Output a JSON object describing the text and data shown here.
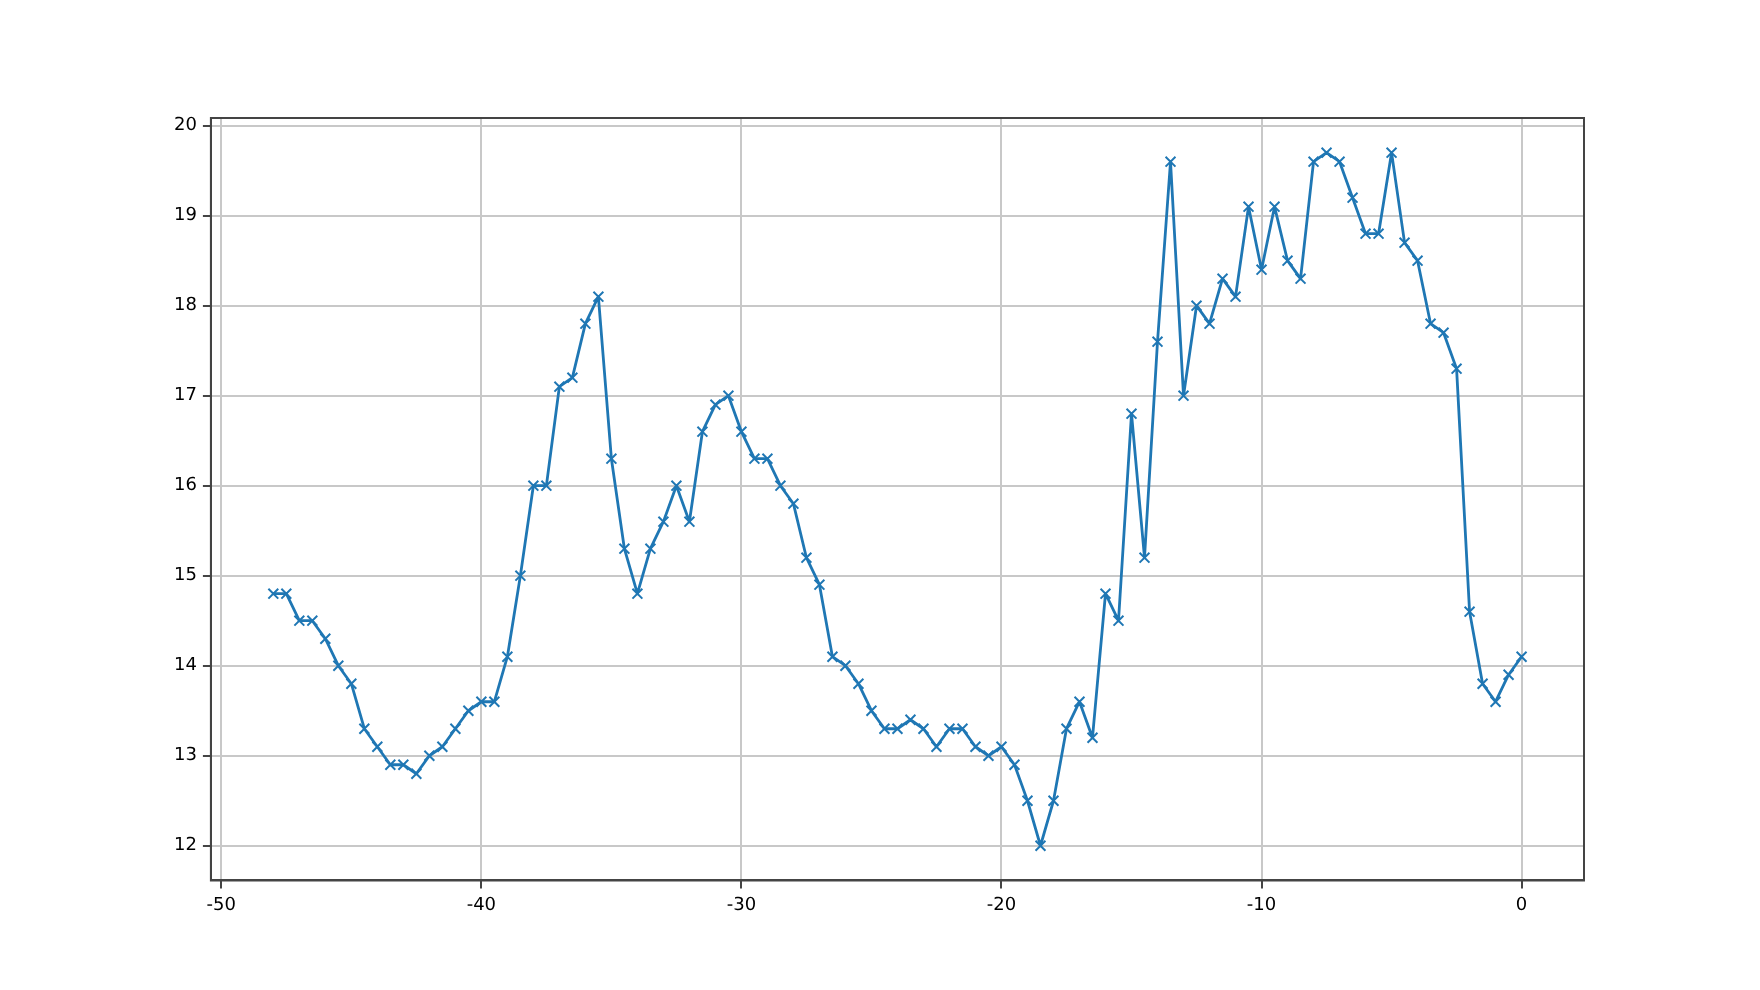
{
  "chart_data": {
    "type": "line",
    "marker": "cross",
    "line_style": "solid",
    "grid": true,
    "legend": false,
    "x": [
      -48,
      -47.5,
      -47,
      -46.5,
      -46,
      -45.5,
      -45,
      -44.5,
      -44,
      -43.5,
      -43,
      -42.5,
      -42,
      -41.5,
      -41,
      -40.5,
      -40,
      -39.5,
      -39,
      -38.5,
      -38,
      -37.5,
      -37,
      -36.5,
      -36,
      -35.5,
      -35,
      -34.5,
      -34,
      -33.5,
      -33,
      -32.5,
      -32,
      -31.5,
      -31,
      -30.5,
      -30,
      -29.5,
      -29,
      -28.5,
      -28,
      -27.5,
      -27,
      -26.5,
      -26,
      -25.5,
      -25,
      -24.5,
      -24,
      -23.5,
      -23,
      -22.5,
      -22,
      -21.5,
      -21,
      -20.5,
      -20,
      -19.5,
      -19,
      -18.5,
      -18,
      -17.5,
      -17,
      -16.5,
      -16,
      -15.5,
      -15,
      -14.5,
      -14,
      -13.5,
      -13,
      -12.5,
      -12,
      -11.5,
      -11,
      -10.5,
      -10,
      -9.5,
      -9,
      -8.5,
      -8,
      -7.5,
      -7,
      -6.5,
      -6,
      -5.5,
      -5,
      -4.5,
      -4,
      -3.5,
      -3,
      -2.5,
      -2,
      -1.5,
      -1,
      -0.5,
      0
    ],
    "series": [
      {
        "color": "#1f77b4",
        "values": [
          14.8,
          14.8,
          14.5,
          14.5,
          14.3,
          14.0,
          13.8,
          13.3,
          13.1,
          12.9,
          12.9,
          12.8,
          13.0,
          13.1,
          13.3,
          13.5,
          13.6,
          13.6,
          14.1,
          15.0,
          16.0,
          16.0,
          17.1,
          17.2,
          17.8,
          18.1,
          16.3,
          15.3,
          14.8,
          15.3,
          15.6,
          16.0,
          15.6,
          16.6,
          16.9,
          17.0,
          16.6,
          16.3,
          16.3,
          16.0,
          15.8,
          15.2,
          14.9,
          14.1,
          14.0,
          13.8,
          13.5,
          13.3,
          13.3,
          13.4,
          13.3,
          13.1,
          13.3,
          13.3,
          13.1,
          13.0,
          13.1,
          12.9,
          12.5,
          12.0,
          12.5,
          13.3,
          13.6,
          13.2,
          14.8,
          14.5,
          16.8,
          15.2,
          17.6,
          19.6,
          17.0,
          18.0,
          17.8,
          18.3,
          18.1,
          19.1,
          18.4,
          19.1,
          18.5,
          18.3,
          19.6,
          19.7,
          19.6,
          19.2,
          18.8,
          18.8,
          19.7,
          18.7,
          18.5,
          17.8,
          17.7,
          17.3,
          14.6,
          13.8,
          13.6,
          13.9,
          14.1
        ]
      }
    ],
    "xlim": [
      -50.4,
      2.4
    ],
    "xticks": [
      -50,
      -40,
      -30,
      -20,
      -10,
      0
    ],
    "ylim": [
      11.615,
      20.085
    ],
    "yticks": [
      12,
      13,
      14,
      15,
      16,
      17,
      18,
      19,
      20
    ]
  }
}
